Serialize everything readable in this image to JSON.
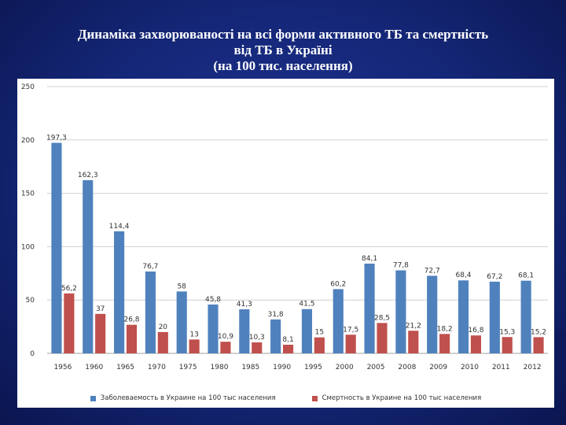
{
  "title": {
    "line1": "Динаміка захворюваності на всі форми активного ТБ та смертність",
    "line2": "від ТБ в Україні",
    "line3": "(на 100 тис. населення)"
  },
  "colors": {
    "incidence": "#4f81bd",
    "mortality": "#c0504d",
    "grid": "#d0d0d0"
  },
  "chart_data": {
    "type": "bar",
    "categories": [
      "1956",
      "1960",
      "1965",
      "1970",
      "1975",
      "1980",
      "1985",
      "1990",
      "1995",
      "2000",
      "2005",
      "2008",
      "2009",
      "2010",
      "2011",
      "2012"
    ],
    "series": [
      {
        "name": "Заболеваемость в Украине на 100 тыс населения",
        "values": [
          197.3,
          162.3,
          114.4,
          76.7,
          58,
          45.8,
          41.3,
          31.8,
          41.5,
          60.2,
          84.1,
          77.8,
          72.7,
          68.4,
          67.2,
          68.1
        ],
        "labels": [
          "197,3",
          "162,3",
          "114,4",
          "76,7",
          "58",
          "45,8",
          "41,3",
          "31,8",
          "41,5",
          "60,2",
          "84,1",
          "77,8",
          "72,7",
          "68,4",
          "67,2",
          "68,1"
        ]
      },
      {
        "name": "Смертность в Украине на 100 тыс населения",
        "values": [
          56.2,
          37,
          26.8,
          20,
          13,
          10.9,
          10.3,
          8.1,
          15,
          17.5,
          28.5,
          21.2,
          18.2,
          16.8,
          15.3,
          15.2
        ],
        "labels": [
          "56,2",
          "37",
          "26,8",
          "20",
          "13",
          "10,9",
          "10,3",
          "8,1",
          "15",
          "17,5",
          "28,5",
          "21,2",
          "18,2",
          "16,8",
          "15,3",
          "15,2"
        ]
      }
    ],
    "yticks": [
      "0",
      "50",
      "100",
      "150",
      "200",
      "250"
    ],
    "ylim": [
      0,
      250
    ],
    "grid": true,
    "legend": "bottom"
  }
}
